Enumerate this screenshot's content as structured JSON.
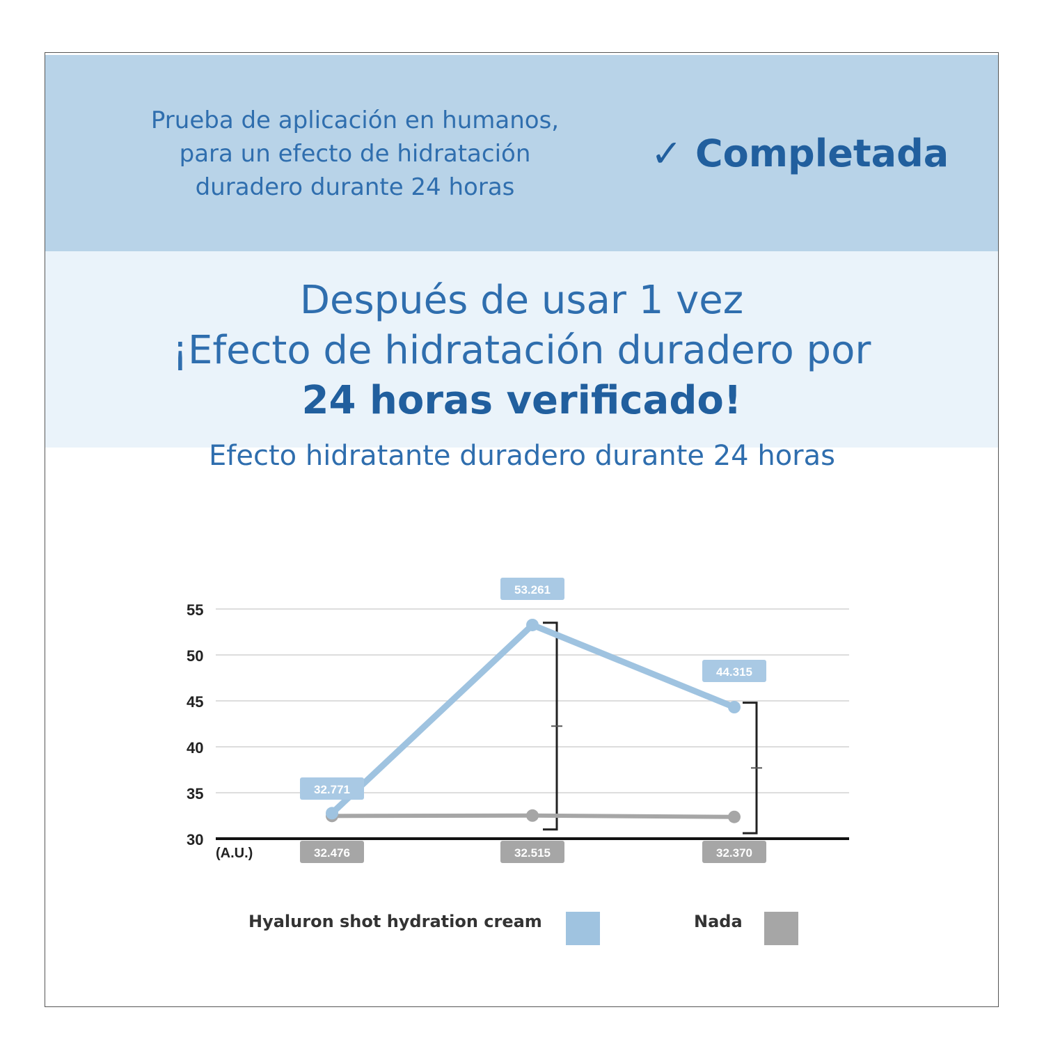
{
  "header": {
    "subtitle_lines": [
      "Prueba de aplicación en humanos,",
      "para un efecto de hidratación",
      "duradero durante 24 horas"
    ],
    "status_icon": "check-icon",
    "status": "✓ Completada"
  },
  "headline": {
    "line1": "Después de usar 1 vez",
    "line2": "¡Efecto de hidratación duradero por",
    "line3": "24 horas verificado!"
  },
  "chart_data": {
    "type": "line",
    "title": "Efecto hidratante duradero durante 24 horas",
    "ylabel": "(A.U.)",
    "ylim": [
      30,
      55
    ],
    "yticks": [
      "30",
      "35",
      "40",
      "45",
      "50",
      "55"
    ],
    "grid": true,
    "legend_placement": "bottom",
    "series": [
      {
        "name": "Hyaluron shot hydration cream",
        "color": "#9fc3e0",
        "values": [
          32.771,
          53.261,
          44.315
        ],
        "labels": [
          "32.771",
          "53.261",
          "44.315"
        ]
      },
      {
        "name": "Nada",
        "color": "#a6a6a6",
        "values": [
          32.476,
          32.515,
          32.37
        ],
        "labels": [
          "32.476",
          "32.515",
          "32.370"
        ]
      }
    ]
  },
  "colors": {
    "header_band": "#b8d3e8",
    "headline_band": "#eaf3fa",
    "text_blue": "#2f6eae"
  }
}
